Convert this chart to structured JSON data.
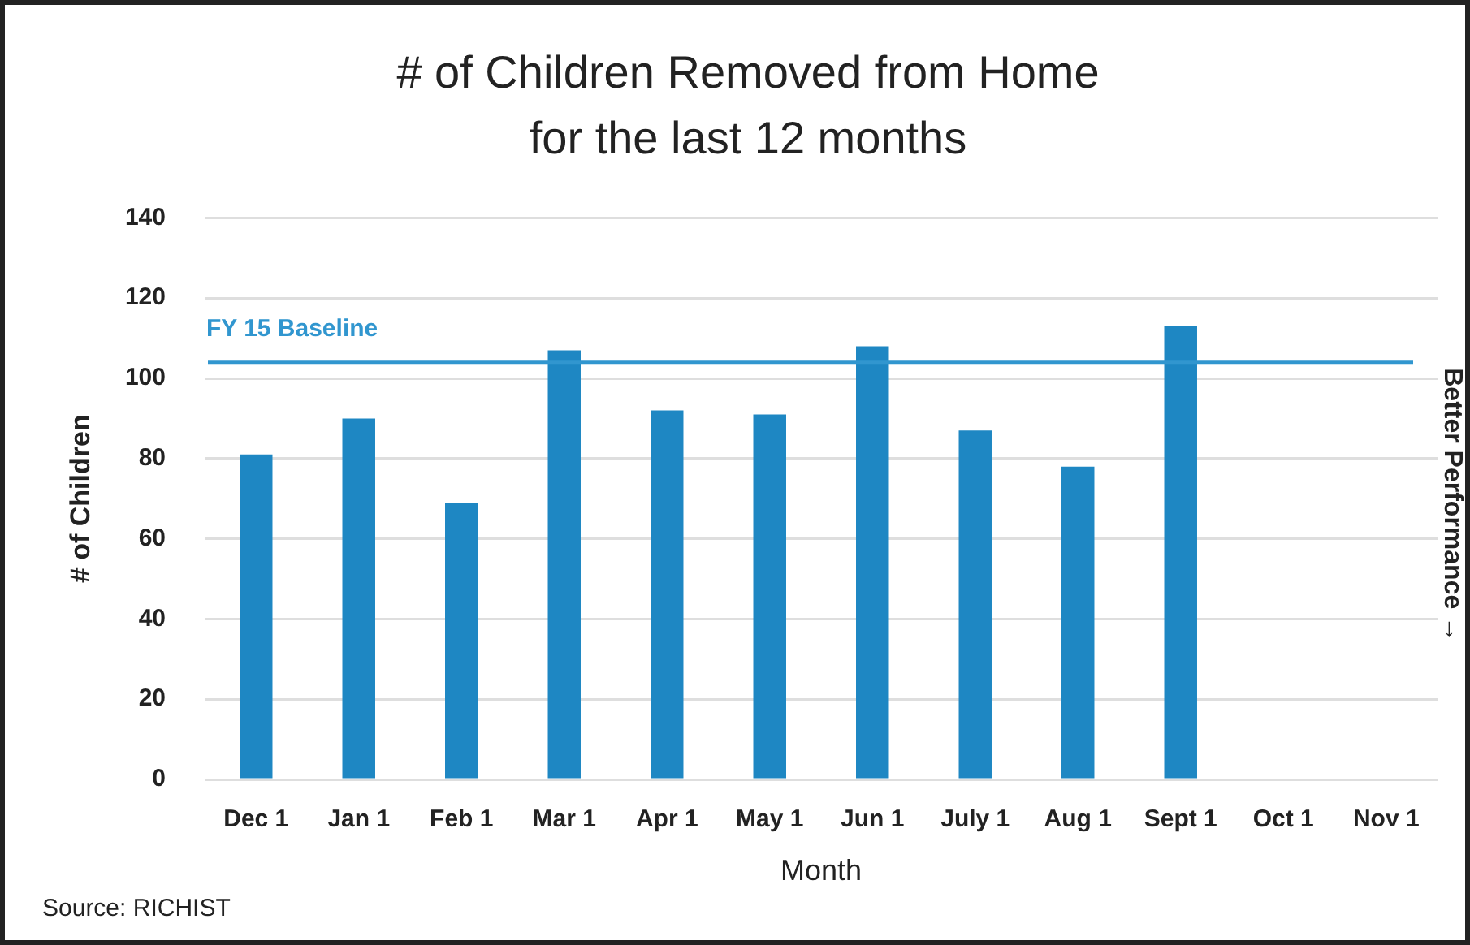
{
  "chart_data": {
    "type": "bar",
    "title": "# of Children Removed from Home\nfor the last 12 months",
    "xlabel": "Month",
    "ylabel": "# of Children",
    "categories": [
      "Dec 1",
      "Jan 1",
      "Feb 1",
      "Mar 1",
      "Apr 1",
      "May 1",
      "Jun 1",
      "July 1",
      "Aug 1",
      "Sept 1",
      "Oct 1",
      "Nov 1"
    ],
    "values": [
      81,
      90,
      69,
      107,
      92,
      91,
      108,
      87,
      78,
      113,
      null,
      null
    ],
    "color": "#1e87c3",
    "ylim": [
      0,
      140
    ],
    "yticks": [
      0,
      20,
      40,
      60,
      80,
      100,
      120,
      140
    ],
    "grid": "y",
    "ref_lines": [
      {
        "axis": "y",
        "value": 104,
        "label": "FY 15 Baseline",
        "color": "#3196cf"
      }
    ],
    "annotations": [
      "Better Performance →",
      "Source: RICHIST"
    ]
  }
}
